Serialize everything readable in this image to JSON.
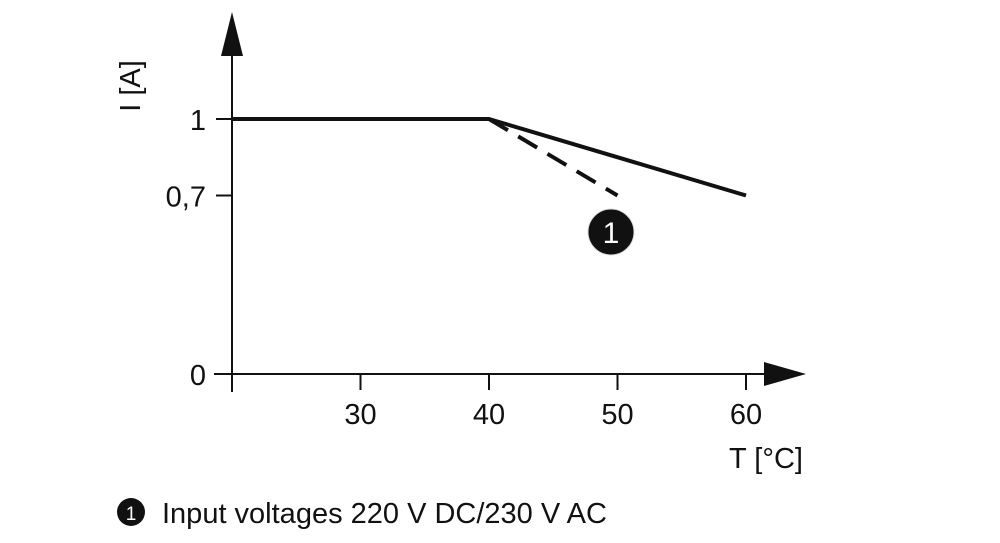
{
  "chart_data": {
    "type": "line",
    "title": "",
    "xlabel": "T [°C]",
    "ylabel": "I [A]",
    "xlim": [
      20,
      60
    ],
    "ylim": [
      0,
      1
    ],
    "x_ticks": [
      {
        "value": 30,
        "label": "30"
      },
      {
        "value": 40,
        "label": "40"
      },
      {
        "value": 50,
        "label": "50"
      },
      {
        "value": 60,
        "label": "60"
      }
    ],
    "y_ticks": [
      {
        "value": 0,
        "label": "0"
      },
      {
        "value": 0.7,
        "label": "0,7"
      },
      {
        "value": 1,
        "label": "1"
      }
    ],
    "grid": false,
    "series": [
      {
        "style": "solid",
        "points": [
          [
            20,
            1
          ],
          [
            40,
            1
          ],
          [
            60,
            0.7
          ]
        ]
      },
      {
        "style": "dashed",
        "marker": "1",
        "points": [
          [
            40,
            1
          ],
          [
            50,
            0.7
          ]
        ]
      }
    ],
    "annotations": [
      {
        "label": "1",
        "text": "Input voltages 220 V DC/230 V AC"
      }
    ],
    "colors": {
      "line": "#111111",
      "marker_fill": "#111111",
      "marker_text": "#ffffff"
    }
  }
}
